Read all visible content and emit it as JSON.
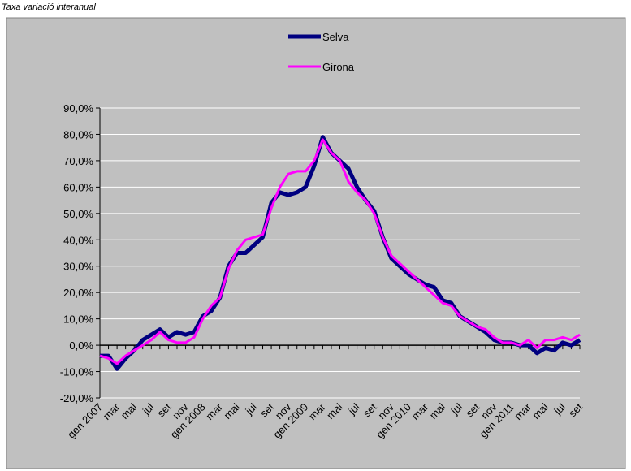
{
  "chart_data": {
    "type": "line",
    "title": "Taxa variació interanual",
    "categories": [
      "gen 2007",
      null,
      "mar",
      null,
      "mai",
      null,
      "jul",
      null,
      "set",
      null,
      "nov",
      null,
      "gen 2008",
      null,
      "mar",
      null,
      "mai",
      null,
      "jul",
      null,
      "set",
      null,
      "nov",
      null,
      "gen 2009",
      null,
      "mar",
      null,
      "mai",
      null,
      "jul",
      null,
      "set",
      null,
      "nov",
      null,
      "gen 2010",
      null,
      "mar",
      null,
      "mai",
      null,
      "jul",
      null,
      "set",
      null,
      "nov",
      null,
      "gen 2011",
      null,
      "mar",
      null,
      "mai",
      null,
      "jul",
      null,
      "set"
    ],
    "series": [
      {
        "name": "Selva",
        "color": "#000080",
        "values": [
          -4,
          -4,
          -9,
          -5,
          -2,
          2,
          4,
          6,
          3,
          5,
          4,
          5,
          11,
          13,
          18,
          30,
          35,
          35,
          38,
          41,
          54,
          58,
          57,
          58,
          60,
          68,
          79,
          73,
          70,
          67,
          60,
          55,
          51,
          41,
          33,
          30,
          27,
          25,
          23,
          22,
          17,
          16,
          11,
          9,
          7,
          5,
          2,
          1,
          1,
          0,
          0,
          -3,
          -1,
          -2,
          1,
          0,
          2
        ]
      },
      {
        "name": "Girona",
        "color": "#ff00ff",
        "values": [
          -4,
          -5,
          -7,
          -4,
          -2,
          0,
          2,
          5,
          2,
          1,
          1,
          3,
          10,
          15,
          18,
          29,
          36,
          40,
          41,
          42,
          52,
          60,
          65,
          66,
          66,
          70,
          78,
          73,
          70,
          62,
          58,
          55,
          50,
          41,
          34,
          31,
          28,
          25,
          22,
          19,
          16,
          15,
          11,
          9,
          7,
          6,
          3,
          1,
          1,
          0,
          2,
          -1,
          2,
          2,
          3,
          2,
          4
        ]
      }
    ],
    "ylim": [
      -20,
      90
    ],
    "yticks": [
      {
        "value": -20,
        "label": "-20,0%"
      },
      {
        "value": -10,
        "label": "-10,0%"
      },
      {
        "value": 0,
        "label": "0,0%"
      },
      {
        "value": 10,
        "label": "10,0%"
      },
      {
        "value": 20,
        "label": "20,0%"
      },
      {
        "value": 30,
        "label": "30,0%"
      },
      {
        "value": 40,
        "label": "40,0%"
      },
      {
        "value": 50,
        "label": "50,0%"
      },
      {
        "value": 60,
        "label": "60,0%"
      },
      {
        "value": 70,
        "label": "70,0%"
      },
      {
        "value": 80,
        "label": "80,0%"
      },
      {
        "value": 90,
        "label": "90,0%"
      }
    ],
    "grid": true
  }
}
